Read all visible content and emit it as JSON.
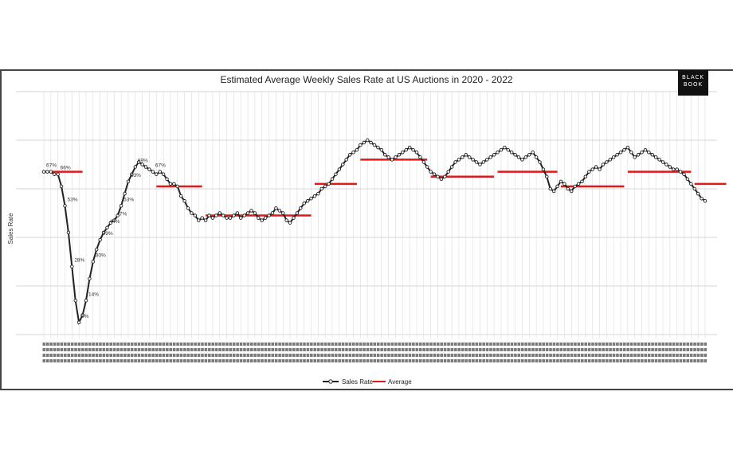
{
  "chart_data": {
    "type": "line",
    "title": "Estimated Average Weekly Sales Rate at US Auctions in 2020 - 2022",
    "ylabel": "Sales Rate",
    "xlabel": "",
    "ylim": [
      0,
      100
    ],
    "grid": true,
    "legend_position": "bottom-center",
    "series": [
      {
        "name": "Sales Rate",
        "color": "#222222",
        "values": [
          67,
          67,
          67,
          66,
          66,
          61,
          53,
          42,
          28,
          14,
          5,
          8,
          14,
          23,
          30,
          35,
          39,
          42,
          44,
          46,
          47,
          49,
          53,
          58,
          63,
          66,
          69,
          71,
          70,
          69,
          68,
          67,
          66,
          67,
          66,
          64,
          62,
          62,
          61,
          57,
          55,
          52,
          50,
          49,
          47,
          48,
          47,
          49,
          48,
          49,
          50,
          49,
          48,
          48,
          49,
          50,
          48,
          49,
          50,
          51,
          50,
          48,
          47,
          48,
          49,
          50,
          52,
          51,
          50,
          47,
          46,
          48,
          50,
          52,
          54,
          55,
          56,
          57,
          58,
          60,
          61,
          62,
          64,
          66,
          68,
          70,
          72,
          74,
          75,
          76,
          78,
          79,
          80,
          79,
          78,
          77,
          76,
          74,
          73,
          72,
          73,
          74,
          75,
          76,
          77,
          76,
          75,
          73,
          71,
          69,
          67,
          66,
          65,
          64,
          65,
          67,
          69,
          71,
          72,
          73,
          74,
          73,
          72,
          71,
          70,
          71,
          72,
          73,
          74,
          75,
          76,
          77,
          76,
          75,
          74,
          73,
          72,
          73,
          74,
          75,
          73,
          71,
          68,
          65,
          60,
          59,
          61,
          63,
          62,
          60,
          59,
          61,
          62,
          63,
          65,
          67,
          68,
          69,
          68,
          70,
          71,
          72,
          73,
          74,
          75,
          76,
          77,
          75,
          73,
          74,
          75,
          76,
          75,
          74,
          73,
          72,
          71,
          70,
          69,
          68,
          68,
          67,
          66,
          64,
          62,
          60,
          58,
          56,
          55
        ],
        "labels": [
          {
            "index": 0,
            "text": "67%"
          },
          {
            "index": 4,
            "text": "66%"
          },
          {
            "index": 6,
            "text": "53%"
          },
          {
            "index": 8,
            "text": "28%"
          },
          {
            "index": 10,
            "text": "5%"
          },
          {
            "index": 12,
            "text": "14%"
          },
          {
            "index": 14,
            "text": "30%"
          },
          {
            "index": 16,
            "text": "39%"
          },
          {
            "index": 18,
            "text": "44%"
          },
          {
            "index": 20,
            "text": "47%"
          },
          {
            "index": 22,
            "text": "53%"
          },
          {
            "index": 24,
            "text": "63%"
          },
          {
            "index": 26,
            "text": "69%"
          },
          {
            "index": 31,
            "text": "67%"
          }
        ]
      },
      {
        "name": "Average",
        "color": "#e0191b",
        "segments": [
          {
            "start": 0,
            "end": 11,
            "value": 67
          },
          {
            "start": 32,
            "end": 45,
            "value": 61
          },
          {
            "start": 46,
            "end": 76,
            "value": 49
          },
          {
            "start": 77,
            "end": 89,
            "value": 62
          },
          {
            "start": 90,
            "end": 109,
            "value": 72
          },
          {
            "start": 110,
            "end": 128,
            "value": 65
          },
          {
            "start": 129,
            "end": 146,
            "value": 67
          },
          {
            "start": 147,
            "end": 165,
            "value": 61
          },
          {
            "start": 166,
            "end": 184,
            "value": 67
          },
          {
            "start": 185,
            "end": 194,
            "value": 62
          }
        ]
      }
    ],
    "legend": [
      "Sales Rate",
      "Average"
    ]
  },
  "brand": {
    "line1": "BLACK",
    "line2": "BOOK"
  }
}
